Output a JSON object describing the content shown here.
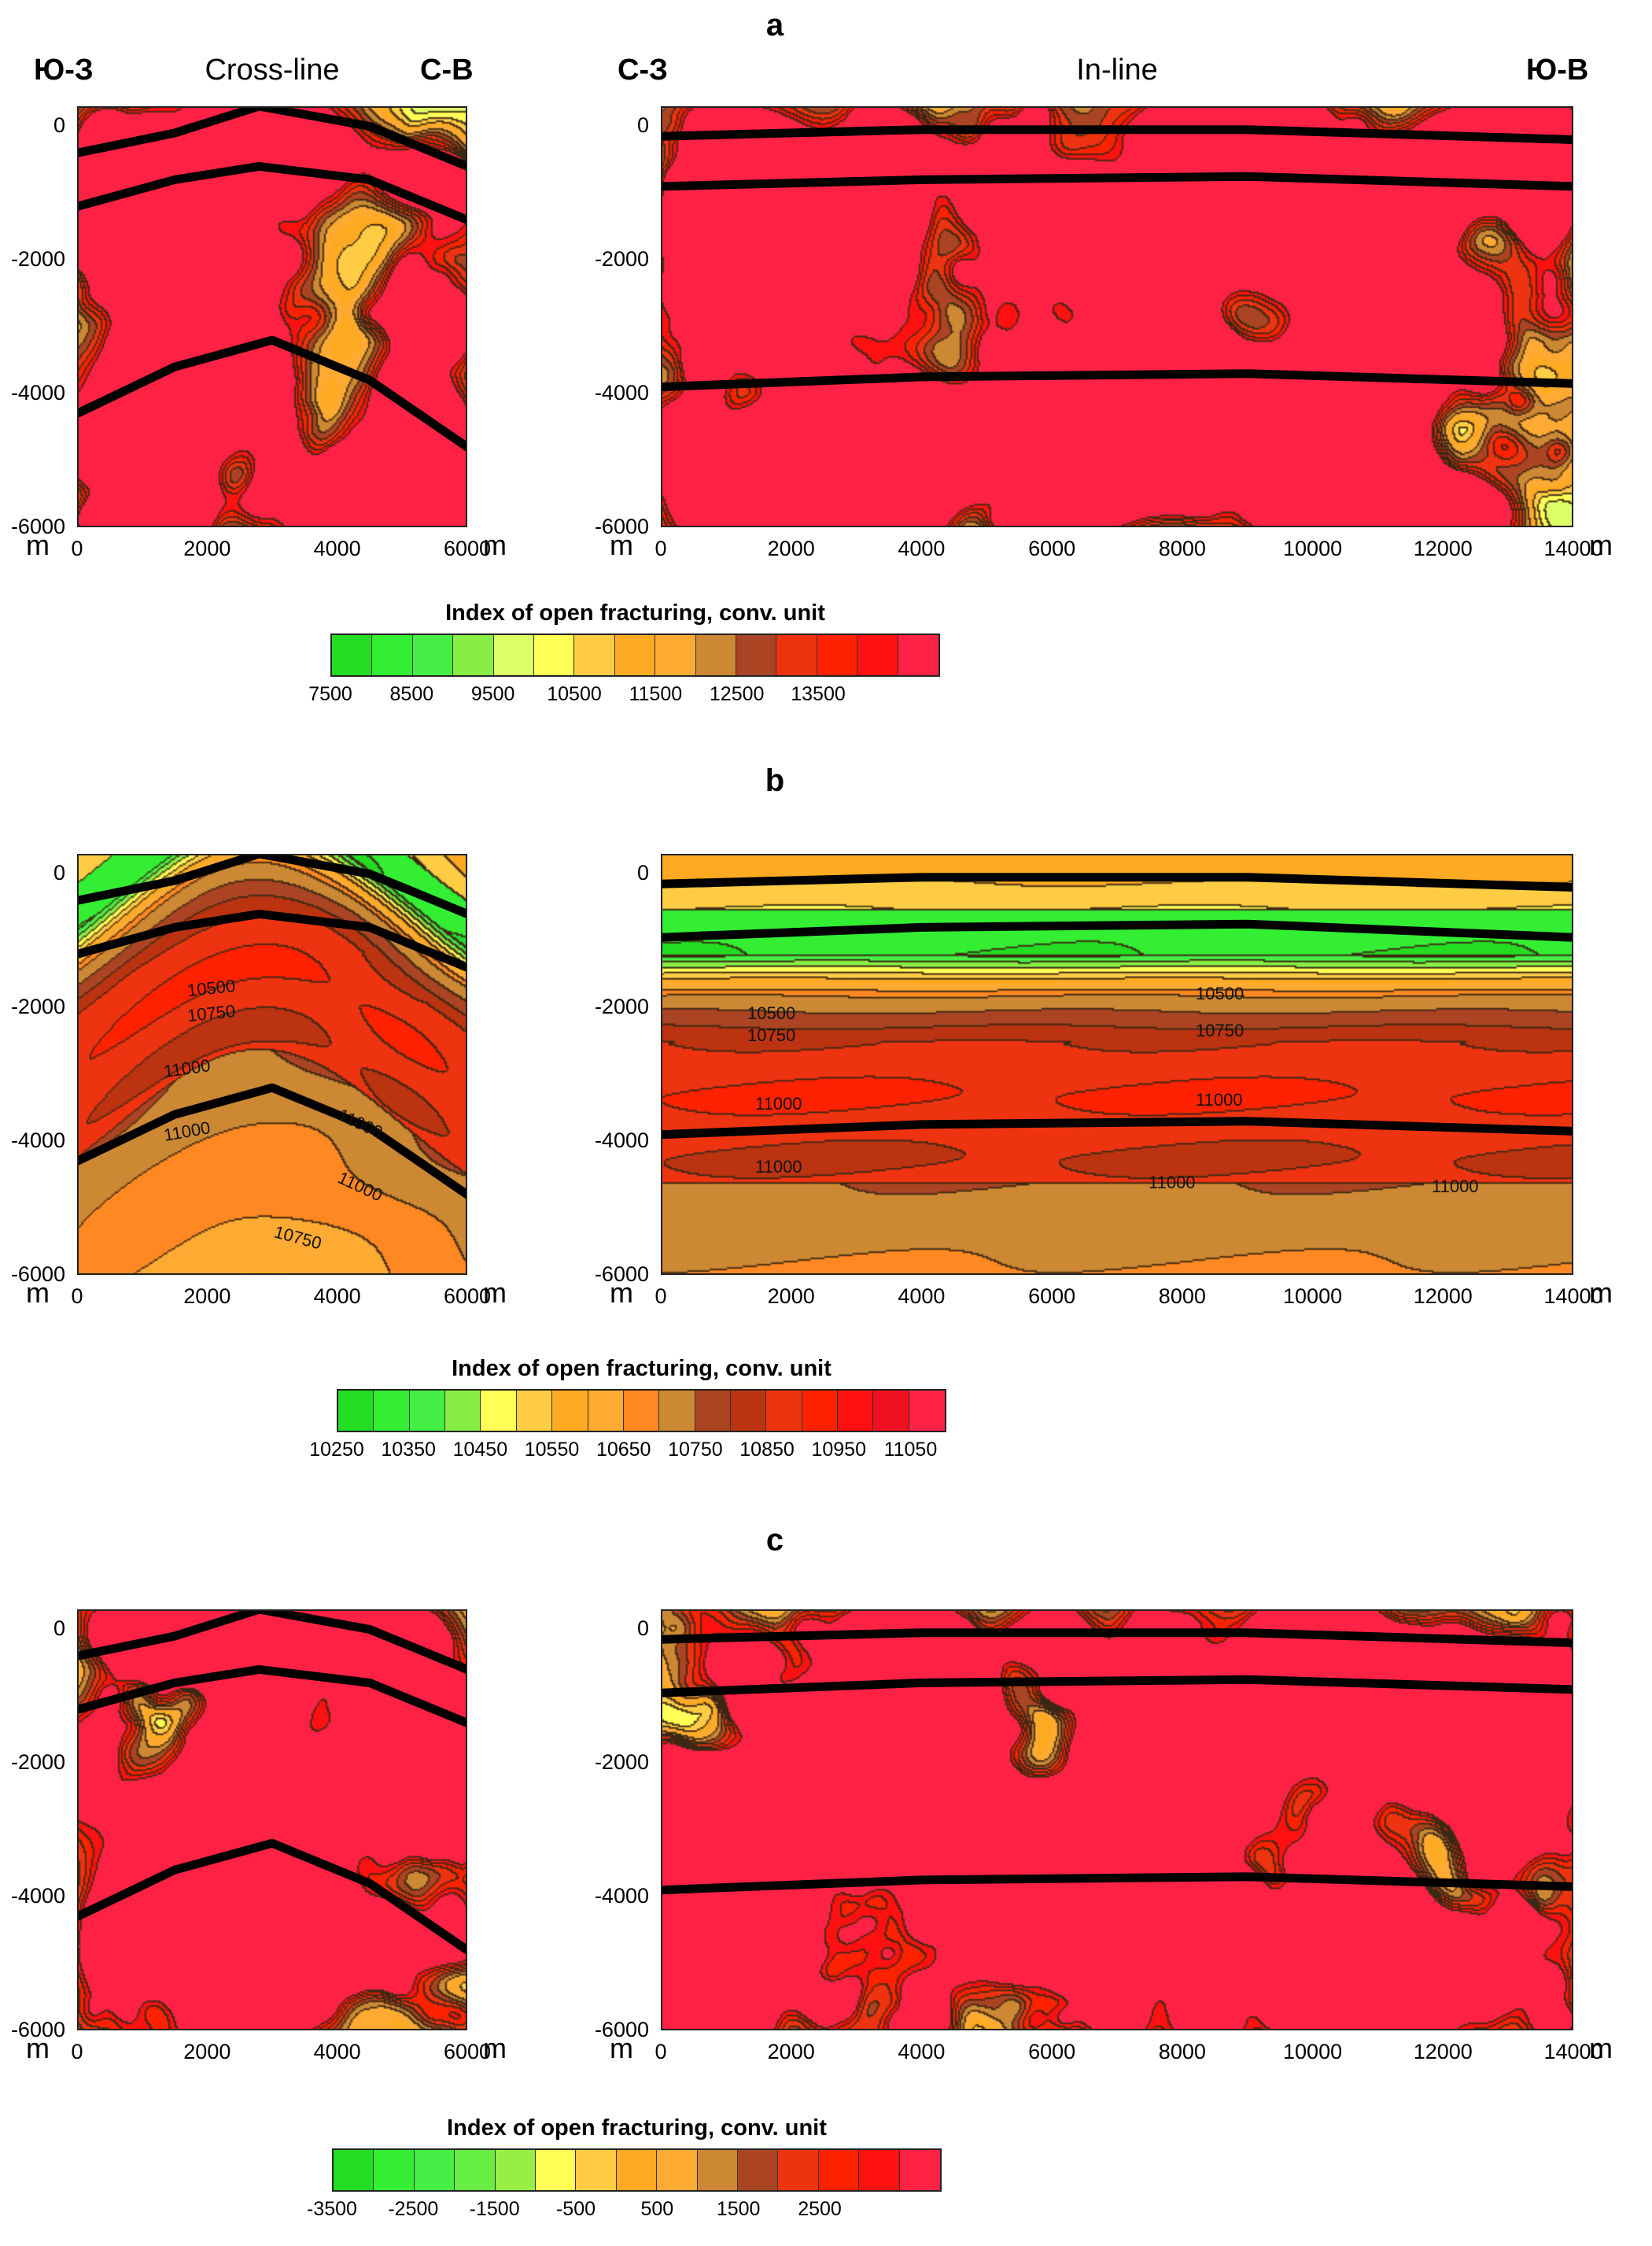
{
  "chart_data": [
    {
      "type": "heatmap",
      "panel": "a",
      "colorbar_title": "Index of open fracturing, conv. unit",
      "colorbar_ticks": [
        "7500",
        "8500",
        "9500",
        "10500",
        "11500",
        "12500",
        "13500"
      ],
      "colors": [
        "#22dd22",
        "#33ee33",
        "#44ee44",
        "#88ee44",
        "#ddff66",
        "#ffff55",
        "#ffcc44",
        "#ffaa22",
        "#ffaa33",
        "#cc8833",
        "#aa4422",
        "#ee3311",
        "#ff2200",
        "#ff1111",
        "#ff2244"
      ],
      "charts": [
        {
          "name": "Cross-line",
          "left_label": "Ю-З",
          "right_label": "С-В",
          "x_unit": "m",
          "y_unit": "m",
          "xlim": [
            0,
            6000
          ],
          "ylim": [
            -6000,
            300
          ],
          "x_ticks": [
            "0",
            "2000",
            "4000",
            "6000"
          ],
          "y_ticks": [
            "0",
            "-2000",
            "-4000",
            "-6000"
          ],
          "horizons": [
            [
              [
                0,
                -400
              ],
              [
                1500,
                -100
              ],
              [
                2800,
                300
              ],
              [
                4500,
                0
              ],
              [
                6000,
                -600
              ]
            ],
            [
              [
                0,
                -1200
              ],
              [
                1500,
                -800
              ],
              [
                2800,
                -600
              ],
              [
                4500,
                -800
              ],
              [
                6000,
                -1400
              ]
            ],
            [
              [
                0,
                -4300
              ],
              [
                1500,
                -3600
              ],
              [
                3000,
                -3200
              ],
              [
                4500,
                -3800
              ],
              [
                6000,
                -4800
              ]
            ]
          ]
        },
        {
          "name": "In-line",
          "left_label": "С-З",
          "right_label": "Ю-В",
          "x_unit": "m",
          "y_unit": "m",
          "xlim": [
            0,
            14000
          ],
          "ylim": [
            -6000,
            300
          ],
          "x_ticks": [
            "0",
            "2000",
            "4000",
            "6000",
            "8000",
            "10000",
            "12000",
            "14000"
          ],
          "y_ticks": [
            "0",
            "-2000",
            "-4000",
            "-6000"
          ],
          "horizons": [
            [
              [
                0,
                -150
              ],
              [
                4000,
                -50
              ],
              [
                9000,
                -50
              ],
              [
                14000,
                -200
              ]
            ],
            [
              [
                0,
                -900
              ],
              [
                4000,
                -800
              ],
              [
                9000,
                -750
              ],
              [
                14000,
                -900
              ]
            ],
            [
              [
                0,
                -3900
              ],
              [
                4000,
                -3750
              ],
              [
                9000,
                -3700
              ],
              [
                14000,
                -3850
              ]
            ]
          ]
        }
      ]
    },
    {
      "type": "heatmap",
      "panel": "b",
      "colorbar_title": "Index of open fracturing, conv. unit",
      "colorbar_ticks": [
        "10250",
        "10350",
        "10450",
        "10550",
        "10650",
        "10750",
        "10850",
        "10950",
        "11050"
      ],
      "colors": [
        "#22dd22",
        "#33ee33",
        "#44ee44",
        "#88ee44",
        "#ffff55",
        "#ffcc44",
        "#ffaa22",
        "#ffaa33",
        "#ff8822",
        "#cc8833",
        "#aa4422",
        "#bb3311",
        "#ee3311",
        "#ff2200",
        "#ff1111",
        "#ee1122",
        "#ff2244"
      ],
      "contour_labels": {
        "cross": [
          "10500",
          "10750",
          "11000",
          "11000",
          "11000",
          "11000",
          "10750"
        ],
        "inline": [
          "10500",
          "10750",
          "10500",
          "10750",
          "11000",
          "11000",
          "11000",
          "11000",
          "11000"
        ]
      },
      "charts": [
        {
          "name": "Cross-line",
          "x_unit": "m",
          "y_unit": "m",
          "xlim": [
            0,
            6000
          ],
          "ylim": [
            -6000,
            300
          ],
          "x_ticks": [
            "0",
            "2000",
            "4000",
            "6000"
          ],
          "y_ticks": [
            "0",
            "-2000",
            "-4000",
            "-6000"
          ],
          "horizons": [
            [
              [
                0,
                -400
              ],
              [
                1500,
                -100
              ],
              [
                2800,
                300
              ],
              [
                4500,
                0
              ],
              [
                6000,
                -600
              ]
            ],
            [
              [
                0,
                -1200
              ],
              [
                1500,
                -800
              ],
              [
                2800,
                -600
              ],
              [
                4500,
                -800
              ],
              [
                6000,
                -1400
              ]
            ],
            [
              [
                0,
                -4300
              ],
              [
                1500,
                -3600
              ],
              [
                3000,
                -3200
              ],
              [
                4500,
                -3800
              ],
              [
                6000,
                -4800
              ]
            ]
          ]
        },
        {
          "name": "In-line",
          "x_unit": "m",
          "y_unit": "m",
          "xlim": [
            0,
            14000
          ],
          "ylim": [
            -6000,
            300
          ],
          "x_ticks": [
            "0",
            "2000",
            "4000",
            "6000",
            "8000",
            "10000",
            "12000",
            "14000"
          ],
          "y_ticks": [
            "0",
            "-2000",
            "-4000",
            "-6000"
          ],
          "horizons": [
            [
              [
                0,
                -150
              ],
              [
                4000,
                -50
              ],
              [
                9000,
                -50
              ],
              [
                14000,
                -200
              ]
            ],
            [
              [
                0,
                -950
              ],
              [
                4000,
                -800
              ],
              [
                9000,
                -750
              ],
              [
                14000,
                -950
              ]
            ],
            [
              [
                0,
                -3900
              ],
              [
                4000,
                -3750
              ],
              [
                9000,
                -3700
              ],
              [
                14000,
                -3850
              ]
            ]
          ]
        }
      ]
    },
    {
      "type": "heatmap",
      "panel": "c",
      "colorbar_title": "Index of open fracturing, conv. unit",
      "colorbar_ticks": [
        "-3500",
        "-2500",
        "-1500",
        "-500",
        "500",
        "1500",
        "2500"
      ],
      "colors": [
        "#22dd22",
        "#33ee33",
        "#44ee44",
        "#66ee44",
        "#99ee44",
        "#ffff55",
        "#ffcc44",
        "#ffaa22",
        "#ffaa33",
        "#cc8833",
        "#aa4422",
        "#ee3311",
        "#ff2200",
        "#ff1111",
        "#ff2244"
      ],
      "charts": [
        {
          "name": "Cross-line",
          "x_unit": "m",
          "y_unit": "m",
          "xlim": [
            0,
            6000
          ],
          "ylim": [
            -6000,
            300
          ],
          "x_ticks": [
            "0",
            "2000",
            "4000",
            "6000"
          ],
          "y_ticks": [
            "0",
            "-2000",
            "-4000",
            "-6000"
          ],
          "horizons": [
            [
              [
                0,
                -400
              ],
              [
                1500,
                -100
              ],
              [
                2800,
                300
              ],
              [
                4500,
                0
              ],
              [
                6000,
                -600
              ]
            ],
            [
              [
                0,
                -1200
              ],
              [
                1500,
                -800
              ],
              [
                2800,
                -600
              ],
              [
                4500,
                -800
              ],
              [
                6000,
                -1400
              ]
            ],
            [
              [
                0,
                -4300
              ],
              [
                1500,
                -3600
              ],
              [
                3000,
                -3200
              ],
              [
                4500,
                -3800
              ],
              [
                6000,
                -4800
              ]
            ]
          ]
        },
        {
          "name": "In-line",
          "x_unit": "m",
          "y_unit": "m",
          "xlim": [
            0,
            14000
          ],
          "ylim": [
            -6000,
            300
          ],
          "x_ticks": [
            "0",
            "2000",
            "4000",
            "6000",
            "8000",
            "10000",
            "12000",
            "14000"
          ],
          "y_ticks": [
            "0",
            "-2000",
            "-4000",
            "-6000"
          ],
          "horizons": [
            [
              [
                0,
                -150
              ],
              [
                4000,
                -50
              ],
              [
                9000,
                -50
              ],
              [
                14000,
                -200
              ]
            ],
            [
              [
                0,
                -950
              ],
              [
                4000,
                -800
              ],
              [
                9000,
                -750
              ],
              [
                14000,
                -900
              ]
            ],
            [
              [
                0,
                -3900
              ],
              [
                4000,
                -3750
              ],
              [
                9000,
                -3700
              ],
              [
                14000,
                -3850
              ]
            ]
          ]
        }
      ]
    }
  ]
}
